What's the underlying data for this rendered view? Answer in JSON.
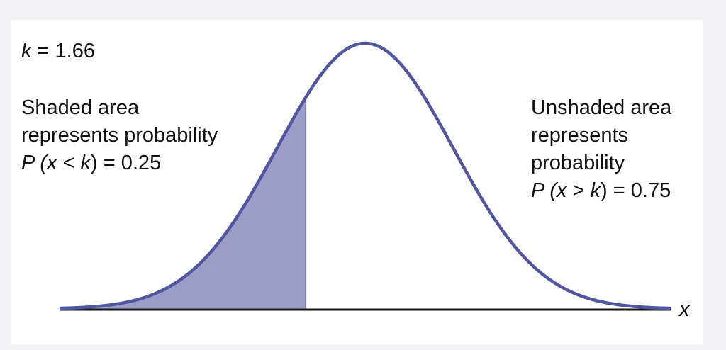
{
  "chart_data": {
    "type": "area",
    "distribution": "normal",
    "x_axis_label": "x",
    "k_label": {
      "var": "k",
      "text": " = 1.66"
    },
    "k": 1.66,
    "shaded_region": "left of k",
    "left_annotation": {
      "line1": "Shaded area",
      "line2": "represents probability",
      "prob_prefix": "P (",
      "prob_var1": "x",
      "prob_op": " < ",
      "prob_var2": "k",
      "prob_suffix": ") = 0.25"
    },
    "right_annotation": {
      "line1": "Unshaded area",
      "line2": "represents",
      "line3": "probability",
      "prob_prefix": "P (",
      "prob_var1": "x",
      "prob_op": " > ",
      "prob_var2": "k",
      "prob_suffix": ") = 0.75"
    },
    "p_left": 0.25,
    "p_right": 0.75,
    "colors": {
      "curve": "#5057a0",
      "shade": "#9b9dc8",
      "axis": "#1a1a1a"
    }
  }
}
